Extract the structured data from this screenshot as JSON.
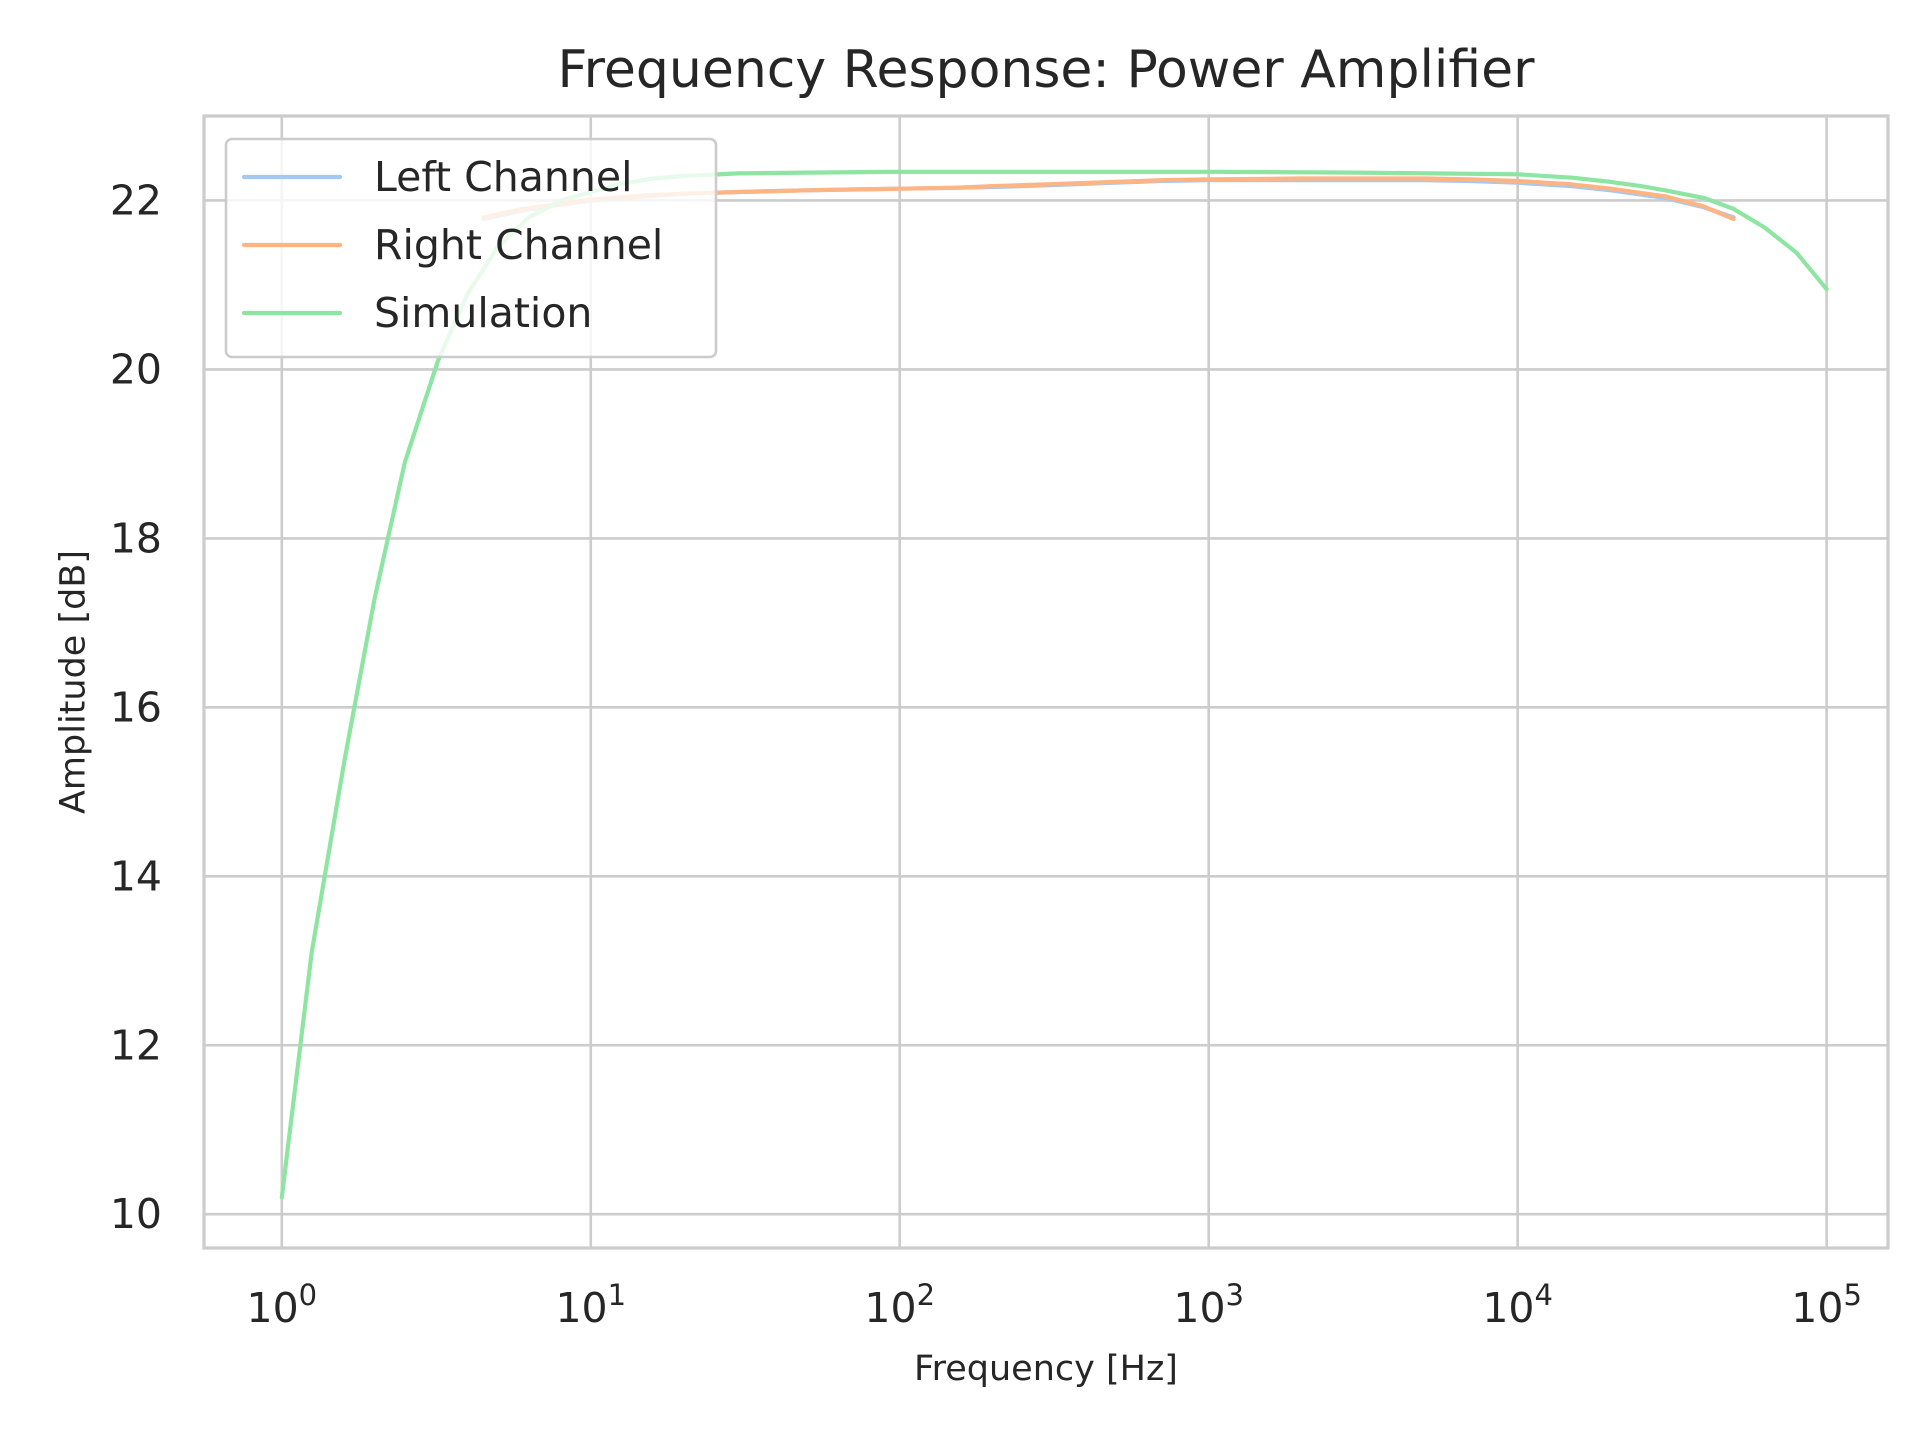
{
  "chart_data": {
    "type": "line",
    "title": "Frequency Response: Power Amplifier",
    "xlabel": "Frequency [Hz]",
    "ylabel": "Amplitude [dB]",
    "x_scale": "log",
    "xlim": [
      0.56,
      158000
    ],
    "ylim": [
      9.6,
      23.0
    ],
    "x_ticks": [
      {
        "value": 1,
        "base": "10",
        "exp": "0"
      },
      {
        "value": 10,
        "base": "10",
        "exp": "1"
      },
      {
        "value": 100,
        "base": "10",
        "exp": "2"
      },
      {
        "value": 1000,
        "base": "10",
        "exp": "3"
      },
      {
        "value": 10000,
        "base": "10",
        "exp": "4"
      },
      {
        "value": 100000,
        "base": "10",
        "exp": "5"
      }
    ],
    "y_ticks": [
      {
        "value": 10,
        "label": "10"
      },
      {
        "value": 12,
        "label": "12"
      },
      {
        "value": 14,
        "label": "14"
      },
      {
        "value": 16,
        "label": "16"
      },
      {
        "value": 18,
        "label": "18"
      },
      {
        "value": 20,
        "label": "20"
      },
      {
        "value": 22,
        "label": "22"
      }
    ],
    "grid": true,
    "legend_position": "upper-left",
    "series": [
      {
        "name": "Left Channel",
        "color": "#a1c9f4",
        "x": [
          4.5,
          6,
          8,
          10,
          15,
          20,
          30,
          50,
          70,
          100,
          150,
          200,
          300,
          500,
          700,
          1000,
          2000,
          3000,
          5000,
          7000,
          10000,
          15000,
          20000,
          30000,
          40000,
          50000
        ],
        "y": [
          21.78,
          21.88,
          21.95,
          22.0,
          22.05,
          22.08,
          22.1,
          22.12,
          22.13,
          22.14,
          22.15,
          22.16,
          22.18,
          22.21,
          22.23,
          22.24,
          22.24,
          22.24,
          22.24,
          22.23,
          22.21,
          22.17,
          22.12,
          22.03,
          21.92,
          21.8
        ]
      },
      {
        "name": "Right Channel",
        "color": "#ffb482",
        "x": [
          4.5,
          6,
          8,
          10,
          15,
          20,
          30,
          50,
          70,
          100,
          150,
          200,
          300,
          500,
          700,
          1000,
          2000,
          3000,
          5000,
          7000,
          10000,
          15000,
          20000,
          30000,
          40000,
          50000
        ],
        "y": [
          21.8,
          21.9,
          21.96,
          22.01,
          22.06,
          22.08,
          22.1,
          22.12,
          22.13,
          22.14,
          22.15,
          22.17,
          22.19,
          22.22,
          22.24,
          22.25,
          22.26,
          22.26,
          22.26,
          22.25,
          22.23,
          22.19,
          22.14,
          22.05,
          21.93,
          21.78
        ]
      },
      {
        "name": "Simulation",
        "color": "#8de5a1",
        "x": [
          1,
          1.25,
          1.6,
          2,
          2.5,
          3.2,
          4,
          5,
          6.3,
          8,
          10,
          12.6,
          16,
          20,
          30,
          50,
          100,
          300,
          1000,
          3000,
          10000,
          15000,
          20000,
          25000,
          30000,
          40000,
          50000,
          63000,
          80000,
          100000
        ],
        "y": [
          10.2,
          13.1,
          15.4,
          17.3,
          18.9,
          20.1,
          20.9,
          21.45,
          21.8,
          22.0,
          22.1,
          22.2,
          22.26,
          22.29,
          22.32,
          22.33,
          22.34,
          22.34,
          22.34,
          22.33,
          22.31,
          22.27,
          22.22,
          22.17,
          22.12,
          22.03,
          21.9,
          21.68,
          21.38,
          20.95
        ]
      }
    ]
  }
}
